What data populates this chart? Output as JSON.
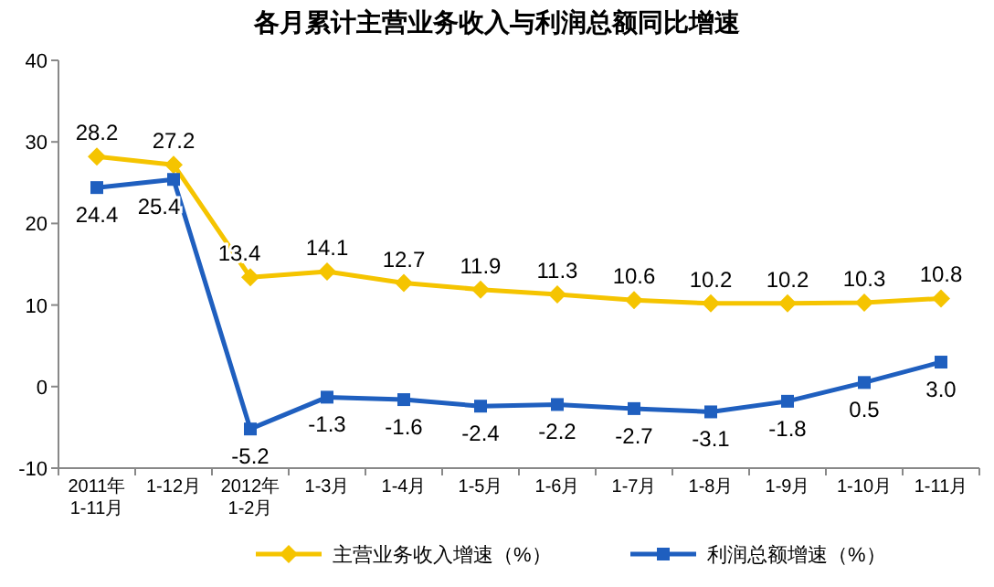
{
  "chart_data": {
    "type": "line",
    "title": "各月累计主营业务收入与利润总额同比增速",
    "categories": [
      "2011年\n1-11月",
      "1-12月",
      "2012年\n1-2月",
      "1-3月",
      "1-4月",
      "1-5月",
      "1-6月",
      "1-7月",
      "1-8月",
      "1-9月",
      "1-10月",
      "1-11月"
    ],
    "series": [
      {
        "name": "主营业务收入增速（%）",
        "color": "#f5c400",
        "marker": "diamond",
        "values": [
          28.2,
          27.2,
          13.4,
          14.1,
          12.7,
          11.9,
          11.3,
          10.6,
          10.2,
          10.2,
          10.3,
          10.8
        ],
        "value_labels": [
          "28.2",
          "27.2",
          "13.4",
          "14.1",
          "12.7",
          "11.9",
          "11.3",
          "10.6",
          "10.2",
          "10.2",
          "10.3",
          "10.8"
        ]
      },
      {
        "name": "利润总额增速（%）",
        "color": "#1f5fbf",
        "marker": "square",
        "values": [
          24.4,
          25.4,
          -5.2,
          -1.3,
          -1.6,
          -2.4,
          -2.2,
          -2.7,
          -3.1,
          -1.8,
          0.5,
          3.0
        ],
        "value_labels": [
          "24.4",
          "25.4",
          "-5.2",
          "-1.3",
          "-1.6",
          "-2.4",
          "-2.2",
          "-2.7",
          "-3.1",
          "-1.8",
          "0.5",
          "3.0"
        ]
      }
    ],
    "ylim": [
      -10,
      40
    ],
    "yticks": [
      -10,
      0,
      10,
      20,
      30,
      40
    ],
    "legend": "bottom",
    "grid": false
  }
}
